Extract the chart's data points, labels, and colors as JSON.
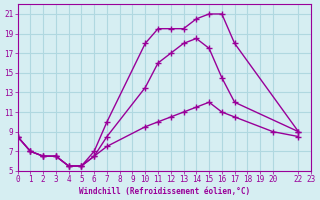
{
  "xlabel": "Windchill (Refroidissement éolien,°C)",
  "background_color": "#d6eef2",
  "grid_color": "#b0d8e0",
  "line_color": "#990099",
  "xlim": [
    0,
    23
  ],
  "ylim": [
    5,
    22
  ],
  "xtick_positions": [
    0,
    1,
    2,
    3,
    4,
    5,
    6,
    7,
    8,
    9,
    10,
    11,
    12,
    13,
    14,
    15,
    16,
    17,
    18,
    19,
    20,
    22,
    23
  ],
  "xtick_labels": [
    "0",
    "1",
    "2",
    "3",
    "4",
    "5",
    "6",
    "7",
    "8",
    "9",
    "10",
    "11",
    "12",
    "13",
    "14",
    "15",
    "16",
    "17",
    "18",
    "19",
    "20",
    "22",
    "23"
  ],
  "ytick_positions": [
    5,
    7,
    9,
    11,
    13,
    15,
    17,
    19,
    21
  ],
  "series": [
    {
      "x": [
        0,
        1,
        2,
        3,
        4,
        5,
        6,
        7,
        10,
        11,
        12,
        13,
        14,
        15,
        16,
        17,
        22
      ],
      "y": [
        8.5,
        7.0,
        6.5,
        6.5,
        5.5,
        5.5,
        7.0,
        10.0,
        18.0,
        19.5,
        19.5,
        19.5,
        20.5,
        21.0,
        21.0,
        18.0,
        9.0
      ]
    },
    {
      "x": [
        0,
        1,
        2,
        3,
        4,
        5,
        6,
        7,
        10,
        11,
        12,
        13,
        14,
        15,
        16,
        17,
        22
      ],
      "y": [
        8.5,
        7.0,
        6.5,
        6.5,
        5.5,
        5.5,
        6.5,
        8.5,
        13.5,
        16.0,
        17.0,
        18.0,
        18.5,
        17.5,
        14.5,
        12.0,
        9.0
      ]
    },
    {
      "x": [
        0,
        1,
        2,
        3,
        4,
        5,
        6,
        7,
        10,
        11,
        12,
        13,
        14,
        15,
        16,
        17,
        20,
        22
      ],
      "y": [
        8.5,
        7.0,
        6.5,
        6.5,
        5.5,
        5.5,
        6.5,
        7.5,
        9.5,
        10.0,
        10.5,
        11.0,
        11.5,
        12.0,
        11.0,
        10.5,
        9.0,
        8.5
      ]
    }
  ]
}
